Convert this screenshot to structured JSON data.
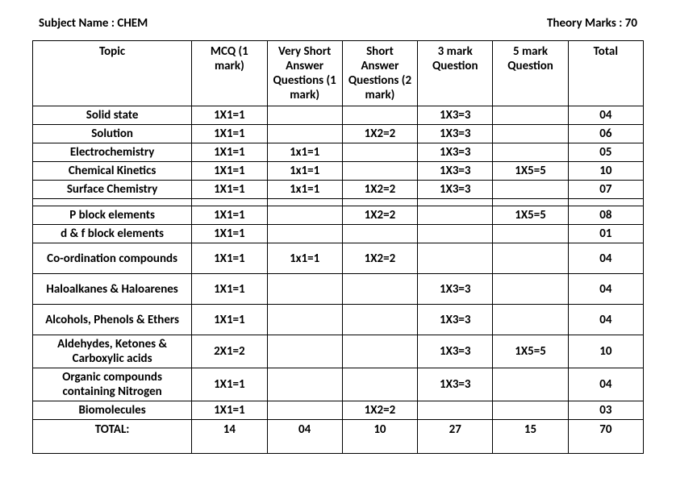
{
  "header": {
    "subject_label": "Subject Name : CHEM",
    "marks_label": "Theory Marks : 70"
  },
  "columns": {
    "c0": "Topic",
    "c1": "MCQ (1 mark)",
    "c2": "Very Short Answer Questions (1 mark)",
    "c3": "Short Answer Questions (2 mark)",
    "c4": "3 mark Question",
    "c5": "5 mark Question",
    "c6": "Total"
  },
  "rows": {
    "r0": {
      "topic": "Solid state",
      "mcq": "1X1=1",
      "vsa": "",
      "sa": "",
      "q3": "1X3=3",
      "q5": "",
      "total": "04"
    },
    "r1": {
      "topic": "Solution",
      "mcq": "1X1=1",
      "vsa": "",
      "sa": "1X2=2",
      "q3": "1X3=3",
      "q5": "",
      "total": "06"
    },
    "r2": {
      "topic": "Electrochemistry",
      "mcq": "1X1=1",
      "vsa": "1x1=1",
      "sa": "",
      "q3": "1X3=3",
      "q5": "",
      "total": "05"
    },
    "r3": {
      "topic": "Chemical Kinetics",
      "mcq": "1X1=1",
      "vsa": "1x1=1",
      "sa": "",
      "q3": "1X3=3",
      "q5": "1X5=5",
      "total": "10"
    },
    "r4": {
      "topic": "Surface Chemistry",
      "mcq": "1X1=1",
      "vsa": "1x1=1",
      "sa": "1X2=2",
      "q3": "1X3=3",
      "q5": "",
      "total": "07"
    },
    "r5": {
      "topic": "P block elements",
      "mcq": "1X1=1",
      "vsa": "",
      "sa": "1X2=2",
      "q3": "",
      "q5": "1X5=5",
      "total": "08"
    },
    "r6": {
      "topic": "d & f block elements",
      "mcq": "1X1=1",
      "vsa": "",
      "sa": "",
      "q3": "",
      "q5": "",
      "total": "01"
    },
    "r7": {
      "topic": "Co-ordination compounds",
      "mcq": "1X1=1",
      "vsa": "1x1=1",
      "sa": "1X2=2",
      "q3": "",
      "q5": "",
      "total": "04"
    },
    "r8": {
      "topic": "Haloalkanes & Haloarenes",
      "mcq": "1X1=1",
      "vsa": "",
      "sa": "",
      "q3": "1X3=3",
      "q5": "",
      "total": "04"
    },
    "r9": {
      "topic": "Alcohols, Phenols & Ethers",
      "mcq": "1X1=1",
      "vsa": "",
      "sa": "",
      "q3": "1X3=3",
      "q5": "",
      "total": "04"
    },
    "r10": {
      "topic": "Aldehydes, Ketones & Carboxylic acids",
      "mcq": "2X1=2",
      "vsa": "",
      "sa": "",
      "q3": "1X3=3",
      "q5": "1X5=5",
      "total": "10"
    },
    "r11": {
      "topic": "Organic compounds containing Nitrogen",
      "mcq": "1X1=1",
      "vsa": "",
      "sa": "",
      "q3": "1X3=3",
      "q5": "",
      "total": "04"
    },
    "r12": {
      "topic": "Biomolecules",
      "mcq": "1X1=1",
      "vsa": "",
      "sa": "1X2=2",
      "q3": "",
      "q5": "",
      "total": "03"
    }
  },
  "totals": {
    "topic": "TOTAL:",
    "mcq": "14",
    "vsa": "04",
    "sa": "10",
    "q3": "27",
    "q5": "15",
    "total": "70"
  }
}
